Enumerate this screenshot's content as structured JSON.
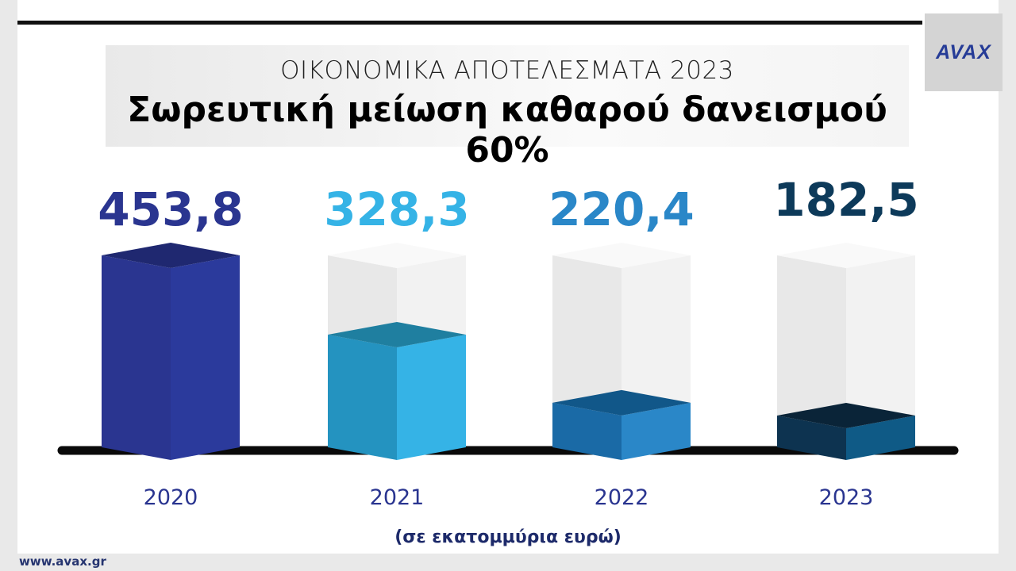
{
  "header": {
    "subtitle": "ΟΙΚΟΝΟΜΙΚΑ ΑΠΟΤΕΛΕΣΜΑΤΑ 2023",
    "title": "Σωρευτική μείωση καθαρού δανεισμού 60%"
  },
  "logo": {
    "text": "AVAX"
  },
  "footer": {
    "website": "www.avax.gr"
  },
  "chart_data": {
    "type": "bar",
    "title": "Σωρευτική μείωση καθαρού δανεισμού 60%",
    "categories": [
      "2020",
      "2021",
      "2022",
      "2023"
    ],
    "values": [
      453.8,
      328.3,
      220.4,
      182.5
    ],
    "value_labels": [
      "453,8",
      "328,3",
      "220,4",
      "182,5"
    ],
    "unit_label": "(σε εκατομμύρια ευρώ)",
    "colors": {
      "front_left": [
        "#2a3590",
        "#2493c0",
        "#1a6aa6",
        "#0d3350"
      ],
      "front_right": [
        "#2b3a9c",
        "#35b3e6",
        "#2a87c8",
        "#0f5a86"
      ],
      "top": [
        "#1f2870",
        "#1f7fa0",
        "#115789",
        "#0a2438"
      ],
      "label": [
        "#2a3590",
        "#35b3e6",
        "#2a87c8",
        "#0d3a5a"
      ]
    }
  }
}
